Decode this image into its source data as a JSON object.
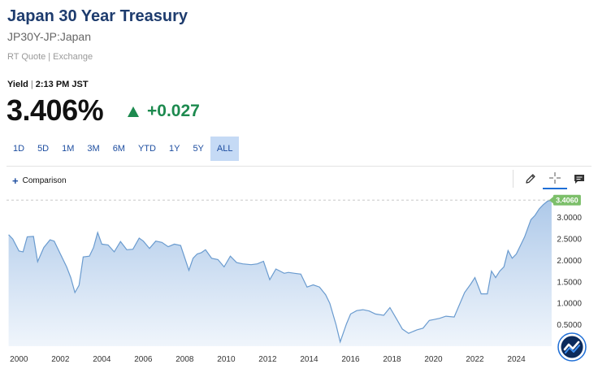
{
  "header": {
    "title": "Japan 30 Year Treasury",
    "symbol": "JP30Y-JP:Japan",
    "quote_type": "RT Quote",
    "exchange": "Exchange",
    "yield_label": "Yield",
    "time": "2:13 PM JST"
  },
  "quote": {
    "price": "3.406%",
    "change": "+0.027",
    "direction": "up",
    "change_color": "#1d8a4f"
  },
  "ranges": {
    "items": [
      "1D",
      "5D",
      "1M",
      "3M",
      "6M",
      "YTD",
      "1Y",
      "5Y",
      "ALL"
    ],
    "selected": "ALL"
  },
  "toolbar": {
    "comparison_label": "Comparison",
    "icons": [
      "pencil-icon",
      "crosshair-icon",
      "comment-icon"
    ],
    "active": "crosshair-icon"
  },
  "chart_data": {
    "type": "area",
    "title": "",
    "xlabel": "",
    "ylabel": "",
    "x_ticks": [
      "2000",
      "2002",
      "2004",
      "2006",
      "2008",
      "2010",
      "2012",
      "2014",
      "2016",
      "2018",
      "2020",
      "2022",
      "2024"
    ],
    "y_ticks": [
      "0.5000",
      "1.0000",
      "1.5000",
      "2.0000",
      "2.5000",
      "3.0000"
    ],
    "xlim": [
      1999.4,
      2025.9
    ],
    "ylim": [
      0.0,
      3.6
    ],
    "grid": false,
    "line_color": "#6a9bcf",
    "fill_top_color": "#a9c6e8",
    "fill_bottom_color": "#eef4fb",
    "last_value_label": "3.4060",
    "last_value_color": "#7cbf6a",
    "series": [
      {
        "x": [
          1999.5,
          1999.7,
          2000.0,
          2000.2,
          2000.4,
          2000.7,
          2000.9,
          2001.2,
          2001.5,
          2001.7,
          2002.0,
          2002.3,
          2002.5,
          2002.7,
          2002.9,
          2003.1,
          2003.4,
          2003.6,
          2003.8,
          2004.0,
          2004.3,
          2004.6,
          2004.9,
          2005.2,
          2005.5,
          2005.8,
          2006.0,
          2006.3,
          2006.6,
          2006.9,
          2007.2,
          2007.5,
          2007.8,
          2008.2,
          2008.4,
          2008.6,
          2008.8,
          2009.0,
          2009.3,
          2009.6,
          2009.9,
          2010.2,
          2010.5,
          2010.8,
          2011.2,
          2011.5,
          2011.8,
          2012.1,
          2012.4,
          2012.6,
          2012.8,
          2013.0,
          2013.3,
          2013.6,
          2013.9,
          2014.2,
          2014.5,
          2014.8,
          2015.0,
          2015.3,
          2015.5,
          2015.8,
          2016.0,
          2016.3,
          2016.6,
          2016.9,
          2017.2,
          2017.6,
          2017.9,
          2018.2,
          2018.5,
          2018.8,
          2019.2,
          2019.5,
          2019.8,
          2020.0,
          2020.3,
          2020.6,
          2021.0,
          2021.5,
          2021.8,
          2022.0,
          2022.3,
          2022.6,
          2022.8,
          2023.0,
          2023.2,
          2023.4,
          2023.6,
          2023.8,
          2024.0,
          2024.2,
          2024.4,
          2024.7,
          2024.9,
          2025.1,
          2025.3,
          2025.5,
          2025.7
        ],
        "y": [
          2.6,
          2.5,
          2.22,
          2.2,
          2.55,
          2.56,
          1.97,
          2.3,
          2.48,
          2.45,
          2.15,
          1.85,
          1.6,
          1.25,
          1.42,
          2.08,
          2.1,
          2.3,
          2.65,
          2.38,
          2.36,
          2.2,
          2.44,
          2.25,
          2.26,
          2.52,
          2.45,
          2.28,
          2.45,
          2.42,
          2.32,
          2.38,
          2.35,
          1.77,
          2.05,
          2.15,
          2.18,
          2.25,
          2.05,
          2.02,
          1.85,
          2.1,
          1.95,
          1.92,
          1.9,
          1.92,
          1.98,
          1.55,
          1.8,
          1.75,
          1.7,
          1.72,
          1.7,
          1.68,
          1.38,
          1.43,
          1.38,
          1.2,
          1.0,
          0.5,
          0.1,
          0.52,
          0.75,
          0.83,
          0.85,
          0.82,
          0.75,
          0.72,
          0.9,
          0.65,
          0.4,
          0.3,
          0.38,
          0.42,
          0.6,
          0.62,
          0.65,
          0.7,
          0.68,
          1.25,
          1.45,
          1.6,
          1.22,
          1.22,
          1.75,
          1.6,
          1.75,
          1.85,
          2.23,
          2.05,
          2.15,
          2.35,
          2.55,
          2.95,
          3.05,
          3.2,
          3.3,
          3.38,
          3.406
        ]
      }
    ]
  }
}
